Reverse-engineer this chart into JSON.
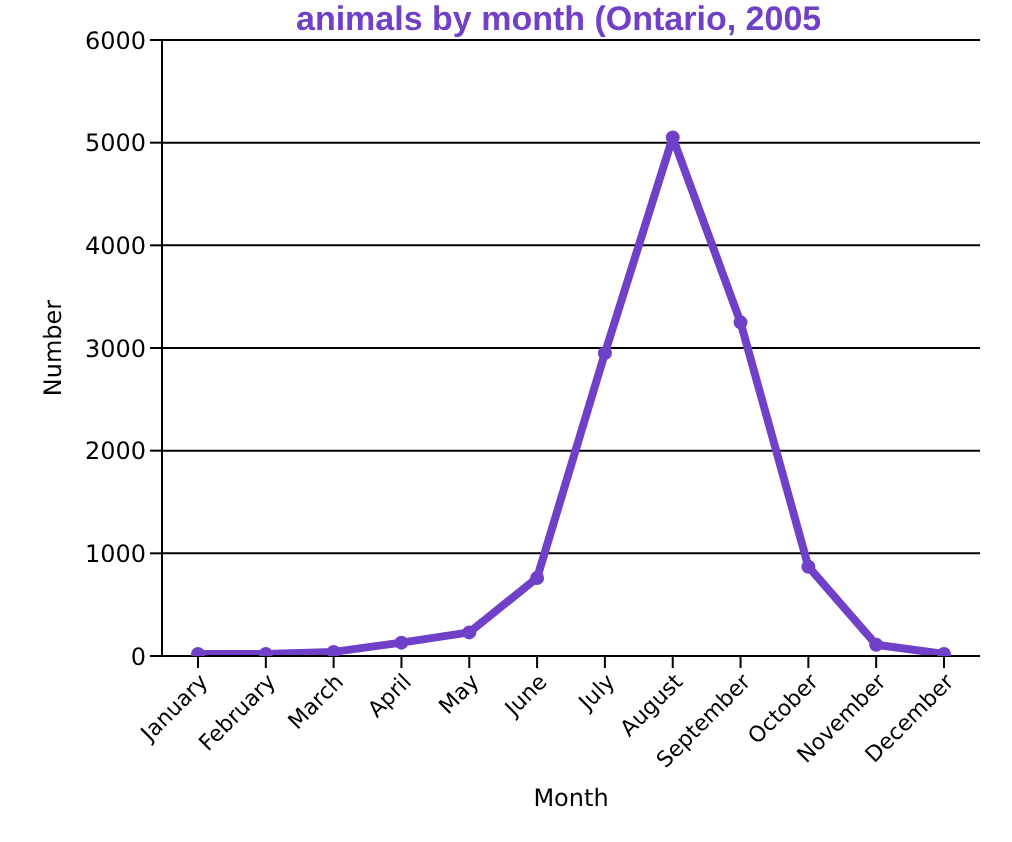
{
  "chart_data": {
    "type": "line",
    "title": "animals by month (Ontario, 2005",
    "xlabel": "Month",
    "ylabel": "Number",
    "categories": [
      "January",
      "February",
      "March",
      "April",
      "May",
      "June",
      "July",
      "August",
      "September",
      "October",
      "November",
      "December"
    ],
    "series": [
      {
        "color": "#7140c8",
        "values": [
          20,
          20,
          40,
          130,
          230,
          760,
          2950,
          5050,
          3250,
          870,
          110,
          20
        ]
      }
    ],
    "ylim": [
      0,
      6000
    ],
    "yticks": [
      0,
      1000,
      2000,
      3000,
      4000,
      5000,
      6000
    ],
    "grid": "y",
    "marker": "circle"
  }
}
